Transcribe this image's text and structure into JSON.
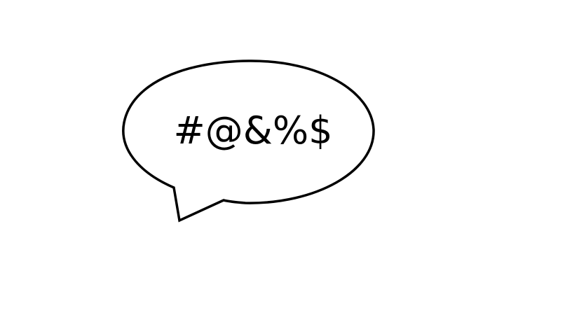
{
  "speech_bubble": {
    "text": "#@&%$"
  },
  "colors": {
    "stroke": "#000000",
    "fill": "#ffffff",
    "text": "#000000"
  }
}
